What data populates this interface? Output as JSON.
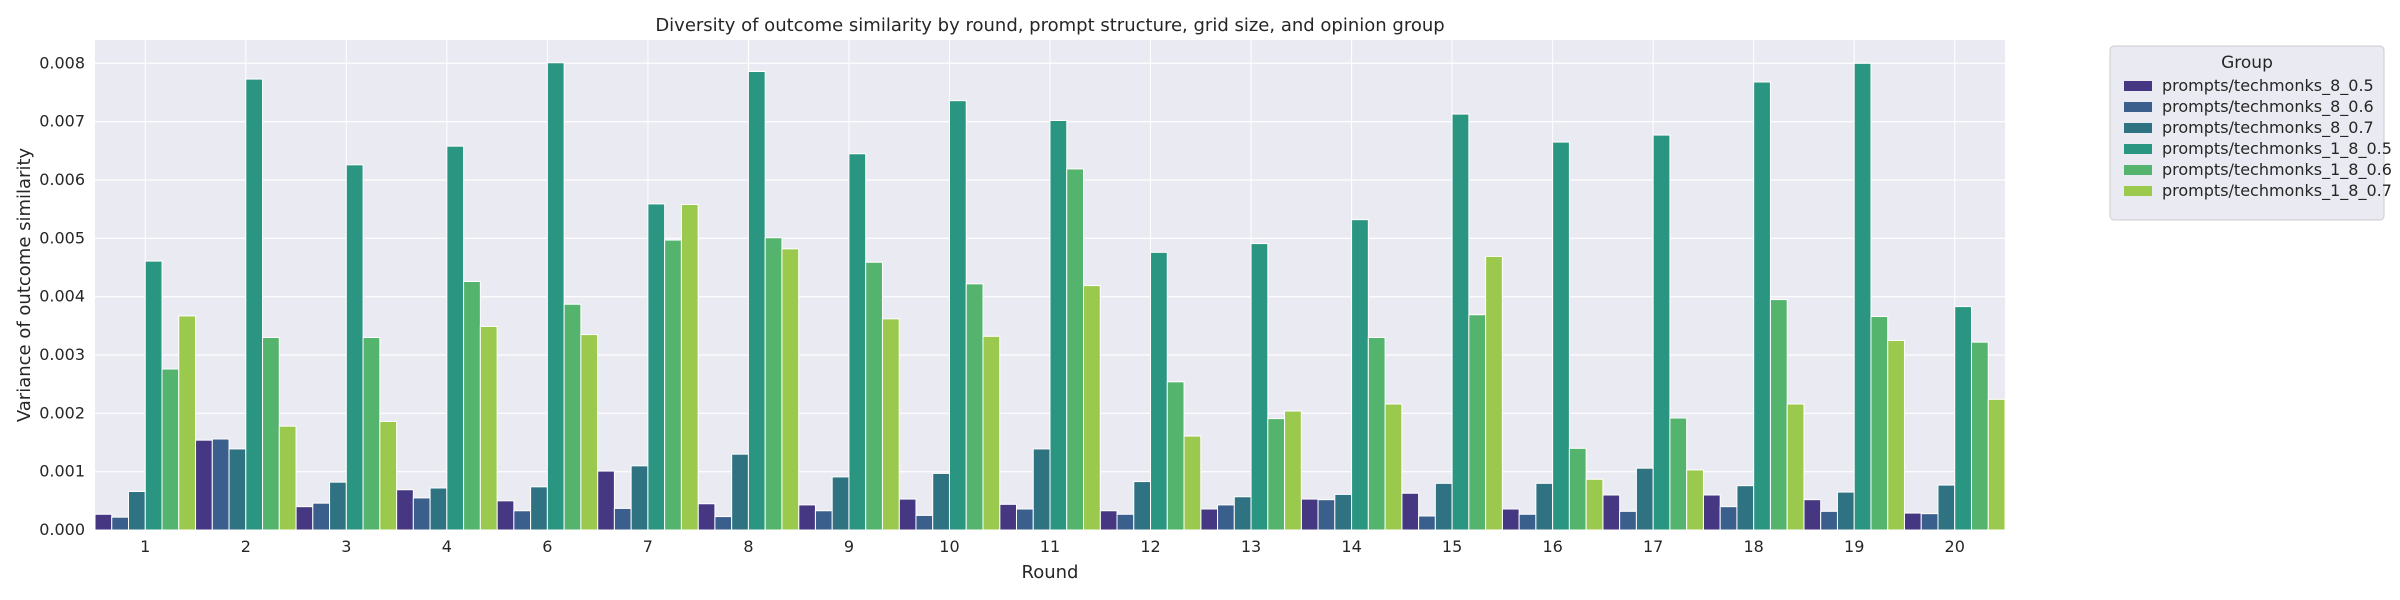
{
  "chart_data": {
    "type": "bar",
    "title": "Diversity of outcome similarity by round, prompt structure, grid size, and opinion group",
    "xlabel": "Round",
    "ylabel": "Variance of outcome similarity",
    "ylim": [
      0,
      0.0084
    ],
    "yticks": [
      "0.000",
      "0.001",
      "0.002",
      "0.003",
      "0.004",
      "0.005",
      "0.006",
      "0.007",
      "0.008"
    ],
    "grid": true,
    "legend_title": "Group",
    "legend_position": "outside-top-right",
    "categories": [
      "1",
      "2",
      "3",
      "4",
      "6",
      "7",
      "8",
      "9",
      "10",
      "11",
      "12",
      "13",
      "14",
      "15",
      "16",
      "17",
      "18",
      "19",
      "20"
    ],
    "series": [
      {
        "name": "prompts/techmonks_8_0.5",
        "color": "#453781",
        "values": [
          0.00027,
          0.00154,
          0.0004,
          0.00069,
          0.0005,
          0.00101,
          0.00045,
          0.00043,
          0.00053,
          0.00044,
          0.00033,
          0.00036,
          0.00053,
          0.00063,
          0.00036,
          0.0006,
          0.0006,
          0.00052,
          0.00029
        ]
      },
      {
        "name": "prompts/techmonks_8_0.6",
        "color": "#3b5f8c",
        "values": [
          0.00022,
          0.00156,
          0.00046,
          0.00055,
          0.00033,
          0.00037,
          0.00023,
          0.00033,
          0.00025,
          0.00036,
          0.00027,
          0.00043,
          0.00052,
          0.00024,
          0.00027,
          0.00032,
          0.0004,
          0.00032,
          0.00028
        ]
      },
      {
        "name": "prompts/techmonks_8_0.7",
        "color": "#2f7382",
        "values": [
          0.00066,
          0.00139,
          0.00082,
          0.00072,
          0.00074,
          0.0011,
          0.0013,
          0.00091,
          0.00097,
          0.00139,
          0.00083,
          0.00057,
          0.00061,
          0.0008,
          0.0008,
          0.00106,
          0.00076,
          0.00065,
          0.00077
        ]
      },
      {
        "name": "prompts/techmonks_1_8_0.5",
        "color": "#2a9580",
        "values": [
          0.00461,
          0.00773,
          0.00626,
          0.00658,
          0.00801,
          0.00559,
          0.00786,
          0.00645,
          0.00736,
          0.00702,
          0.00476,
          0.00491,
          0.00532,
          0.00713,
          0.00665,
          0.00677,
          0.00768,
          0.008,
          0.00383
        ]
      },
      {
        "name": "prompts/techmonks_1_8_0.6",
        "color": "#54b36d",
        "values": [
          0.00276,
          0.0033,
          0.0033,
          0.00426,
          0.00387,
          0.00497,
          0.00501,
          0.00459,
          0.00422,
          0.00619,
          0.00254,
          0.00191,
          0.0033,
          0.00369,
          0.0014,
          0.00192,
          0.00395,
          0.00366,
          0.00322
        ]
      },
      {
        "name": "prompts/techmonks_1_8_0.7",
        "color": "#9bc94d",
        "values": [
          0.00367,
          0.00178,
          0.00186,
          0.00349,
          0.00335,
          0.00558,
          0.00482,
          0.00362,
          0.00332,
          0.00419,
          0.00161,
          0.00204,
          0.00216,
          0.00469,
          0.00087,
          0.00103,
          0.00216,
          0.00325,
          0.00224
        ]
      }
    ]
  }
}
